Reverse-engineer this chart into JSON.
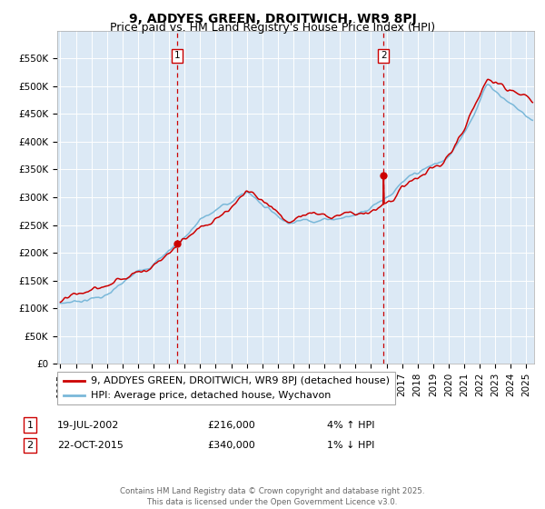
{
  "title": "9, ADDYES GREEN, DROITWICH, WR9 8PJ",
  "subtitle": "Price paid vs. HM Land Registry's House Price Index (HPI)",
  "legend_line1": "9, ADDYES GREEN, DROITWICH, WR9 8PJ (detached house)",
  "legend_line2": "HPI: Average price, detached house, Wychavon",
  "annotation1_label": "1",
  "annotation1_date": "19-JUL-2002",
  "annotation1_price": "£216,000",
  "annotation1_hpi": "4% ↑ HPI",
  "annotation1_year": 2002.54,
  "annotation1_value": 216000,
  "annotation2_label": "2",
  "annotation2_date": "22-OCT-2015",
  "annotation2_price": "£340,000",
  "annotation2_hpi": "1% ↓ HPI",
  "annotation2_year": 2015.81,
  "annotation2_value": 340000,
  "ylim": [
    0,
    600000
  ],
  "yticks": [
    0,
    50000,
    100000,
    150000,
    200000,
    250000,
    300000,
    350000,
    400000,
    450000,
    500000,
    550000
  ],
  "ytick_labels": [
    "£0",
    "£50K",
    "£100K",
    "£150K",
    "£200K",
    "£250K",
    "£300K",
    "£350K",
    "£400K",
    "£450K",
    "£500K",
    "£550K"
  ],
  "xlim_start": 1994.8,
  "xlim_end": 2025.5,
  "xtick_years": [
    1995,
    1996,
    1997,
    1998,
    1999,
    2000,
    2001,
    2002,
    2003,
    2004,
    2005,
    2006,
    2007,
    2008,
    2009,
    2010,
    2011,
    2012,
    2013,
    2014,
    2015,
    2016,
    2017,
    2018,
    2019,
    2020,
    2021,
    2022,
    2023,
    2024,
    2025
  ],
  "hpi_color": "#7ab8d9",
  "price_color": "#cc0000",
  "plot_bg": "#dce9f5",
  "grid_color": "#ffffff",
  "vline_color": "#cc0000",
  "marker_color": "#cc0000",
  "footer": "Contains HM Land Registry data © Crown copyright and database right 2025.\nThis data is licensed under the Open Government Licence v3.0.",
  "title_fontsize": 10,
  "subtitle_fontsize": 9,
  "tick_fontsize": 7.5,
  "legend_fontsize": 8
}
